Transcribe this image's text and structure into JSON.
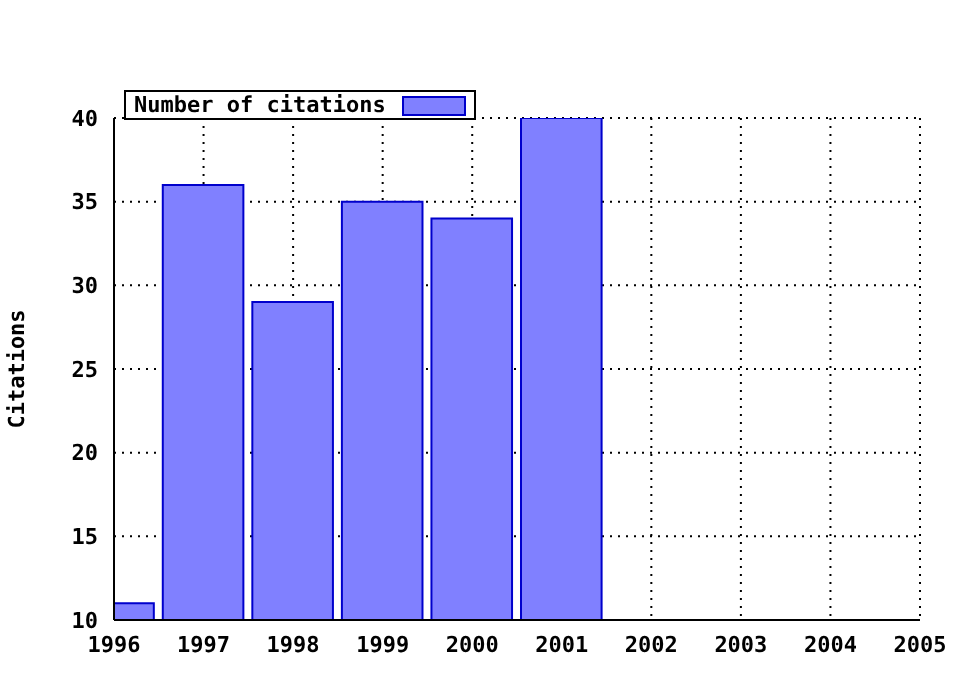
{
  "chart_data": {
    "type": "bar",
    "ylabel": "Citations",
    "x": [
      1996,
      1997,
      1998,
      1999,
      2000,
      2001
    ],
    "series": [
      {
        "name": "Number of citations",
        "color": "#8080ff",
        "values": [
          11,
          36,
          29,
          35,
          34,
          40
        ]
      }
    ],
    "xlim": [
      1996,
      2005
    ],
    "xticks": [
      1996,
      1997,
      1998,
      1999,
      2000,
      2001,
      2002,
      2003,
      2004,
      2005
    ],
    "ylim": [
      10,
      40
    ],
    "yticks": [
      10,
      15,
      20,
      25,
      30,
      35,
      40
    ],
    "grid": true,
    "legend": "top left"
  }
}
